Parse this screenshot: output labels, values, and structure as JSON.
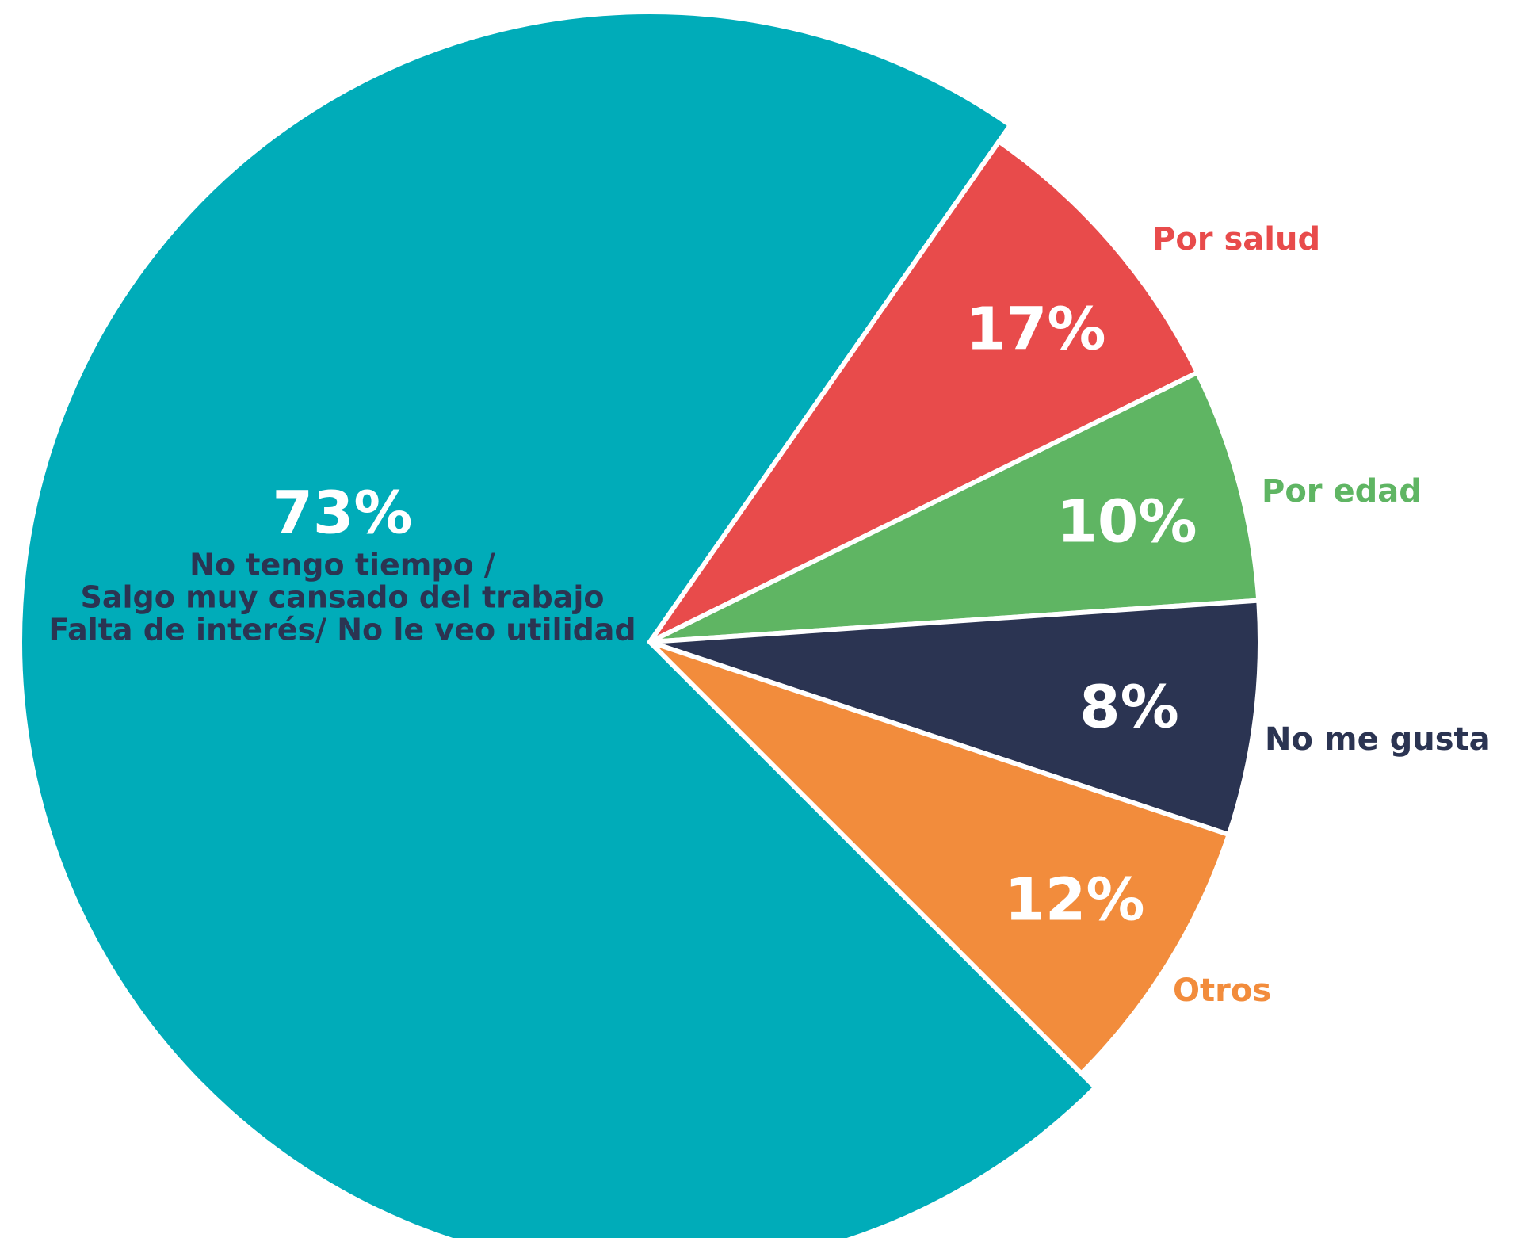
{
  "chart_data": {
    "type": "pie",
    "slices": [
      {
        "value": 73,
        "value_label": "73%",
        "label_lines": [
          "No tengo tiempo /",
          "Salgo muy cansado del trabajo",
          "Falta de interés/ No le veo utilidad"
        ],
        "color": "#00acb9"
      },
      {
        "value": 17,
        "value_label": "17%",
        "label": "Por salud",
        "color": "#e84b4b"
      },
      {
        "value": 10,
        "value_label": "10%",
        "label": "Por edad",
        "color": "#5fb563"
      },
      {
        "value": 8,
        "value_label": "8%",
        "label": "No me gusta",
        "color": "#2b3452"
      },
      {
        "value": 12,
        "value_label": "12%",
        "label": "Otros",
        "color": "#f28c3c"
      }
    ]
  }
}
